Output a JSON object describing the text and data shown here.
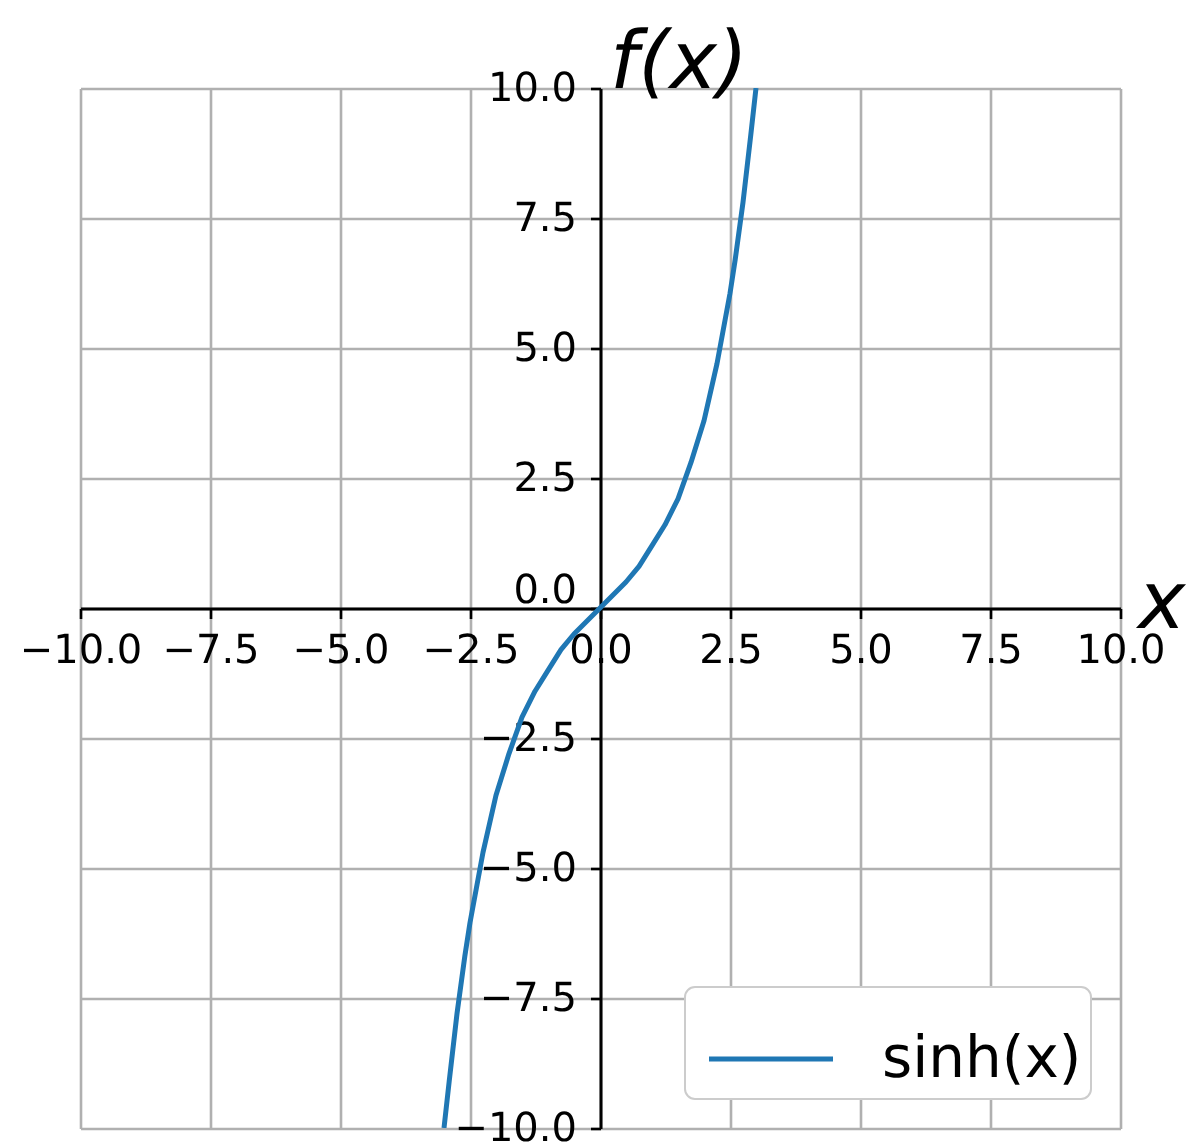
{
  "chart_data": {
    "type": "line",
    "xlabel": "x",
    "ylabel": "f(x)",
    "xlim": [
      -10,
      10
    ],
    "ylim": [
      -10,
      10
    ],
    "xticks": [
      {
        "value": -10,
        "label": "−10.0"
      },
      {
        "value": -7.5,
        "label": "−7.5"
      },
      {
        "value": -5,
        "label": "−5.0"
      },
      {
        "value": -2.5,
        "label": "−2.5"
      },
      {
        "value": 0,
        "label": "0.0"
      },
      2.5,
      {
        "value": 5,
        "label": "5.0"
      },
      7.5,
      {
        "value": 10,
        "label": "10.0"
      }
    ],
    "yticks": [
      {
        "value": -10,
        "label": "−10.0"
      },
      {
        "value": -7.5,
        "label": "−7.5"
      },
      {
        "value": -5,
        "label": "−5.0"
      },
      {
        "value": -2.5,
        "label": "−2.5"
      },
      {
        "value": 0,
        "label": "0.0"
      },
      2.5,
      {
        "value": 5,
        "label": "5.0"
      },
      7.5,
      {
        "value": 10,
        "label": "10.0"
      }
    ],
    "grid": true,
    "legend": "bottom right",
    "line_style": "solid",
    "series": [
      {
        "name": "sinh(x)",
        "color": "#1f77b4",
        "x": [
          -3.0,
          -2.9,
          -2.75,
          -2.6,
          -2.5,
          -2.25,
          -2.0,
          -1.75,
          -1.5,
          -1.25,
          -1.0,
          -0.75,
          -0.5,
          -0.25,
          0,
          0.25,
          0.5,
          0.75,
          1.0,
          1.25,
          1.5,
          1.75,
          2.0,
          2.25,
          2.5,
          2.6,
          2.75,
          2.9,
          3.0
        ],
        "values": [
          -10.0,
          -9.1,
          -7.8,
          -6.7,
          -6.05,
          -4.7,
          -3.6,
          -2.8,
          -2.1,
          -1.6,
          -1.2,
          -0.8,
          -0.5,
          -0.25,
          0,
          0.25,
          0.5,
          0.8,
          1.2,
          1.6,
          2.1,
          2.8,
          3.6,
          4.7,
          6.05,
          6.7,
          7.8,
          9.1,
          10.0
        ]
      }
    ]
  }
}
